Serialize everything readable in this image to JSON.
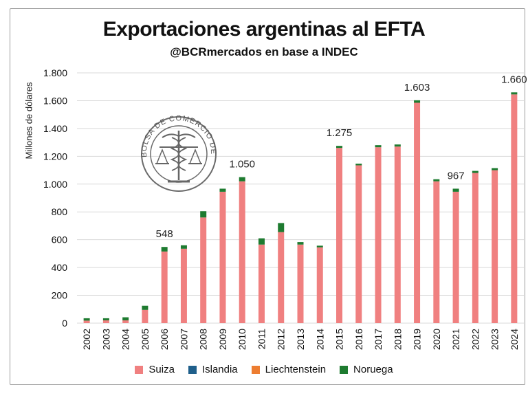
{
  "chart_data": {
    "type": "bar",
    "stacked": true,
    "title": "Exportaciones argentinas al EFTA",
    "subtitle": "@BCRmercados en base a INDEC",
    "ylabel": "Millones de dólares",
    "xlabel": "",
    "ylim": [
      0,
      1800
    ],
    "yticks": [
      0,
      200,
      400,
      600,
      800,
      1000,
      1200,
      1400,
      1600,
      1800
    ],
    "ytick_labels": [
      "0",
      "200",
      "400",
      "600",
      "800",
      "1.000",
      "1.200",
      "1.400",
      "1.600",
      "1.800"
    ],
    "grid": true,
    "legend_position": "bottom",
    "categories": [
      "2002",
      "2003",
      "2004",
      "2005",
      "2006",
      "2007",
      "2008",
      "2009",
      "2010",
      "2011",
      "2012",
      "2013",
      "2014",
      "2015",
      "2016",
      "2017",
      "2018",
      "2019",
      "2020",
      "2021",
      "2022",
      "2023",
      "2024"
    ],
    "series": [
      {
        "name": "Suiza",
        "color": "#f08080",
        "values": [
          18,
          20,
          20,
          95,
          515,
          535,
          760,
          945,
          1020,
          565,
          655,
          565,
          545,
          1260,
          1135,
          1265,
          1270,
          1585,
          1020,
          945,
          1080,
          1100,
          1645
        ]
      },
      {
        "name": "Islandia",
        "color": "#1f5f8b",
        "values": [
          0,
          0,
          0,
          0,
          0,
          0,
          0,
          0,
          0,
          0,
          0,
          0,
          0,
          0,
          0,
          0,
          0,
          0,
          0,
          0,
          0,
          0,
          0
        ]
      },
      {
        "name": "Liechtenstein",
        "color": "#ed7d31",
        "values": [
          0,
          0,
          0,
          0,
          0,
          0,
          0,
          0,
          0,
          0,
          0,
          0,
          0,
          0,
          0,
          0,
          0,
          0,
          0,
          0,
          0,
          0,
          0
        ]
      },
      {
        "name": "Noruega",
        "color": "#1e7b30",
        "values": [
          17,
          15,
          22,
          30,
          33,
          25,
          45,
          22,
          30,
          45,
          65,
          18,
          12,
          15,
          12,
          15,
          15,
          18,
          15,
          22,
          15,
          15,
          15
        ]
      }
    ],
    "data_labels": [
      {
        "category": "2006",
        "text": "548"
      },
      {
        "category": "2010",
        "text": "1.050"
      },
      {
        "category": "2015",
        "text": "1.275"
      },
      {
        "category": "2019",
        "text": "1.603"
      },
      {
        "category": "2021",
        "text": "967"
      },
      {
        "category": "2024",
        "text": "1.660"
      }
    ]
  },
  "seal": {
    "text": "BOLSA DE COMERCIO DE ROSARIO",
    "color": "#555555"
  }
}
